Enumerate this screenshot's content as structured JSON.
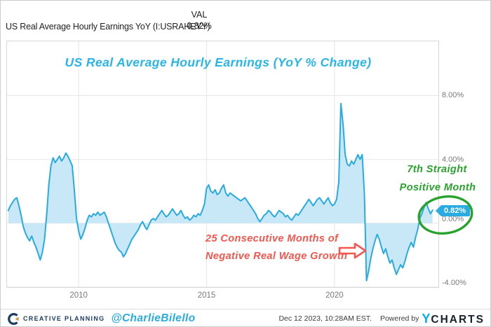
{
  "header": {
    "series_label": "US Real Average Hourly Earnings YoY (I:USRAHEYY)",
    "val_column_header": "VAL",
    "val_value": "0.82%"
  },
  "chart_data": {
    "type": "area",
    "title": "US Real Average Hourly Earnings (YoY % Change)",
    "ylabel": "YoY % Change",
    "xlabel": "",
    "unit": "%",
    "frequency": "monthly",
    "x_start": 2007.25,
    "xlim": [
      2007.2,
      2024.06
    ],
    "ylim": [
      -4,
      11.4
    ],
    "grid": true,
    "legend_position": "none",
    "x_ticks": [
      {
        "t": 2010,
        "label": "2010"
      },
      {
        "t": 2015,
        "label": "2015"
      },
      {
        "t": 2020,
        "label": "2020"
      }
    ],
    "y_ticks": [
      {
        "v": 8,
        "label": "8.00%"
      },
      {
        "v": 4,
        "label": "4.00%"
      },
      {
        "v": 0,
        "label": "0.00%"
      },
      {
        "v": -4,
        "label": "-4.00%"
      }
    ],
    "values": [
      0.8,
      1.1,
      1.3,
      1.5,
      1.6,
      1.1,
      0.5,
      -0.2,
      -0.6,
      -0.9,
      -1.1,
      -0.8,
      -1.2,
      -1.5,
      -1.9,
      -2.3,
      -1.8,
      -1.0,
      0.5,
      2.4,
      3.6,
      4.1,
      3.8,
      4.0,
      4.2,
      3.9,
      4.1,
      4.4,
      4.2,
      3.9,
      3.6,
      2.0,
      0.3,
      -0.5,
      -1.0,
      -0.7,
      -0.3,
      0.2,
      0.5,
      0.4,
      0.6,
      0.5,
      0.7,
      0.5,
      0.6,
      0.7,
      0.4,
      0.0,
      -0.4,
      -0.8,
      -1.2,
      -1.5,
      -1.7,
      -1.8,
      -2.1,
      -1.9,
      -1.6,
      -1.3,
      -1.0,
      -0.8,
      -0.6,
      -0.4,
      -0.1,
      0.1,
      -0.2,
      -0.4,
      -0.1,
      0.2,
      0.3,
      0.2,
      0.4,
      0.6,
      0.8,
      0.6,
      0.4,
      0.5,
      0.7,
      0.9,
      0.7,
      0.5,
      0.6,
      0.8,
      0.5,
      0.3,
      0.4,
      0.2,
      0.3,
      0.5,
      0.4,
      0.6,
      0.5,
      0.8,
      1.2,
      2.2,
      2.4,
      2.0,
      1.9,
      2.1,
      1.8,
      1.9,
      2.2,
      2.4,
      1.9,
      1.7,
      1.9,
      1.8,
      1.7,
      1.6,
      1.5,
      1.4,
      1.5,
      1.6,
      1.4,
      1.2,
      1.0,
      0.8,
      0.6,
      0.3,
      0.1,
      0.3,
      0.5,
      0.6,
      0.8,
      0.7,
      0.5,
      0.4,
      0.6,
      0.8,
      0.7,
      0.6,
      0.4,
      0.5,
      0.3,
      0.2,
      0.4,
      0.6,
      0.5,
      0.7,
      0.9,
      1.1,
      1.3,
      1.5,
      1.3,
      1.1,
      1.3,
      1.5,
      1.6,
      1.4,
      1.2,
      1.4,
      1.6,
      1.3,
      1.1,
      1.2,
      1.5,
      2.6,
      7.5,
      6.2,
      4.3,
      3.7,
      3.6,
      3.9,
      3.7,
      4.0,
      4.3,
      4.0,
      4.3,
      1.8,
      -3.6,
      -3.0,
      -2.2,
      -1.6,
      -1.1,
      -0.7,
      -1.0,
      -1.5,
      -1.9,
      -1.6,
      -2.1,
      -2.5,
      -2.3,
      -2.8,
      -3.2,
      -2.9,
      -2.6,
      -2.8,
      -2.4,
      -1.9,
      -1.5,
      -1.2,
      -1.5,
      -0.9,
      -0.4,
      0.3,
      0.6,
      1.0,
      1.3,
      0.9,
      0.6,
      0.82
    ],
    "last_value_label": "0.82%",
    "line_color": "#29abe2",
    "fill_color": "#c9e8f7",
    "grid_color": "#e6e6e6",
    "title_color": "#29b5e8"
  },
  "annotations": {
    "positive": {
      "line1": "7th Straight",
      "line2": "Positive Month",
      "color": "#28a32e"
    },
    "negative": {
      "line1": "25 Consecutive Months of",
      "line2": "Negative Real Wage Growth",
      "color": "#f4564e"
    }
  },
  "footer": {
    "brand": "CREATIVE PLANNING",
    "handle": "@CharlieBilello",
    "timestamp": "Dec 12 2023, 10:28AM EST.",
    "powered_by": "Powered by",
    "ycharts_y": "Y",
    "ycharts_rest": "CHARTS"
  },
  "colors": {
    "brand_navy": "#1d3d63",
    "brand_gold": "#c9963c",
    "accent_cyan": "#29abe2",
    "ycharts_cyan": "#00adee",
    "ycharts_dark": "#16212d"
  }
}
